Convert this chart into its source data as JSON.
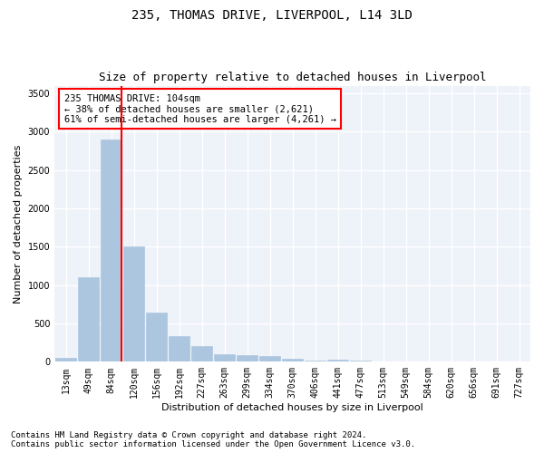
{
  "title": "235, THOMAS DRIVE, LIVERPOOL, L14 3LD",
  "subtitle": "Size of property relative to detached houses in Liverpool",
  "xlabel": "Distribution of detached houses by size in Liverpool",
  "ylabel": "Number of detached properties",
  "bar_labels": [
    "13sqm",
    "49sqm",
    "84sqm",
    "120sqm",
    "156sqm",
    "192sqm",
    "227sqm",
    "263sqm",
    "299sqm",
    "334sqm",
    "370sqm",
    "406sqm",
    "441sqm",
    "477sqm",
    "513sqm",
    "549sqm",
    "584sqm",
    "620sqm",
    "656sqm",
    "691sqm",
    "727sqm"
  ],
  "bar_values": [
    50,
    1100,
    2900,
    1500,
    640,
    330,
    200,
    100,
    90,
    70,
    35,
    15,
    25,
    20,
    5,
    0,
    0,
    0,
    0,
    0,
    0
  ],
  "bar_color": "#adc6e0",
  "bar_edge_color": "#adc6e0",
  "vline_color": "red",
  "annotation_text": "235 THOMAS DRIVE: 104sqm\n← 38% of detached houses are smaller (2,621)\n61% of semi-detached houses are larger (4,261) →",
  "annotation_box_color": "white",
  "annotation_box_edge_color": "red",
  "ylim": [
    0,
    3600
  ],
  "yticks": [
    0,
    500,
    1000,
    1500,
    2000,
    2500,
    3000,
    3500
  ],
  "bg_color": "#eef2f9",
  "grid_color": "white",
  "footer_line1": "Contains HM Land Registry data © Crown copyright and database right 2024.",
  "footer_line2": "Contains public sector information licensed under the Open Government Licence v3.0.",
  "title_fontsize": 10,
  "subtitle_fontsize": 9,
  "axis_label_fontsize": 8,
  "tick_fontsize": 7,
  "annotation_fontsize": 7.5,
  "footer_fontsize": 6.5
}
